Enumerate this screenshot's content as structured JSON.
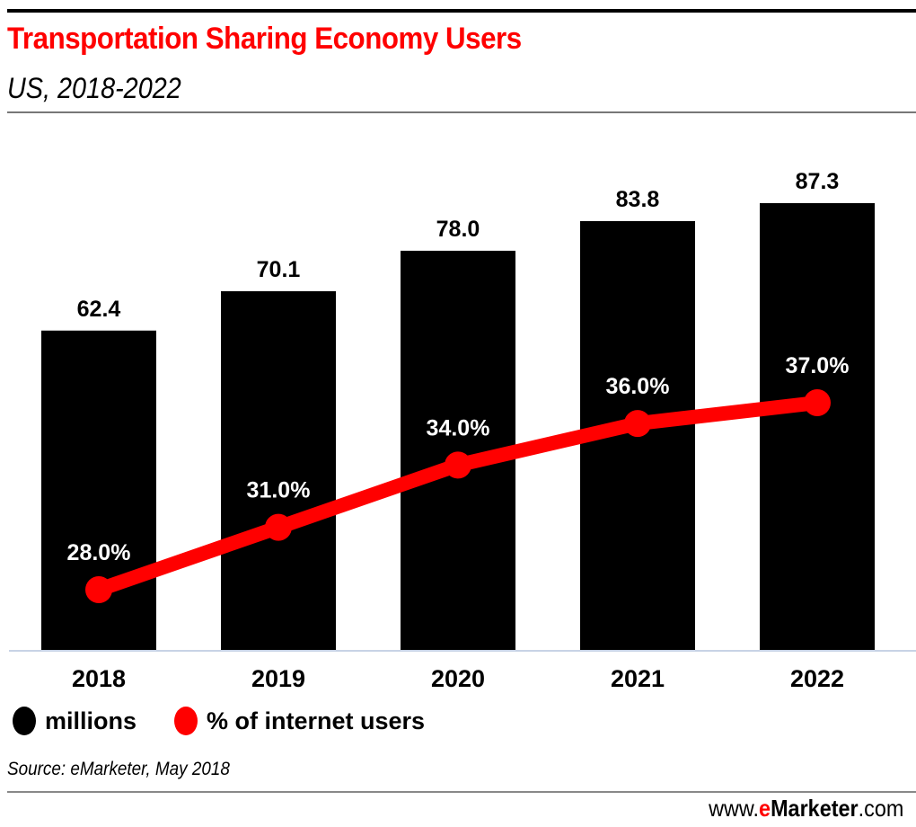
{
  "header": {
    "title": "Transportation Sharing Economy Users",
    "subtitle": "US, 2018-2022"
  },
  "chart_data": {
    "type": "bar",
    "title": "Transportation Sharing Economy Users",
    "subtitle": "US, 2018-2022",
    "xlabel": "",
    "ylabel": "",
    "categories": [
      "2018",
      "2019",
      "2020",
      "2021",
      "2022"
    ],
    "series": [
      {
        "name": "millions",
        "type": "bar",
        "color": "#000000",
        "values": [
          62.4,
          70.1,
          78.0,
          83.8,
          87.3
        ],
        "labels": [
          "62.4",
          "70.1",
          "78.0",
          "83.8",
          "87.3"
        ]
      },
      {
        "name": "% of internet users",
        "type": "line",
        "color": "#ff0000",
        "values": [
          28.0,
          31.0,
          34.0,
          36.0,
          37.0
        ],
        "labels": [
          "28.0%",
          "31.0%",
          "34.0%",
          "36.0%",
          "37.0%"
        ]
      }
    ],
    "ylim": [
      0,
      87.3
    ],
    "y2lim": [
      28.0,
      37.0
    ],
    "grid": false,
    "legend_position": "bottom-left"
  },
  "legend": [
    {
      "label": "millions",
      "color": "#000000"
    },
    {
      "label": "% of internet users",
      "color": "#ff0000"
    }
  ],
  "footer": {
    "source": "Source: eMarketer, May 2018",
    "brand_prefix": "www.",
    "brand_e": "e",
    "brand_name": "Marketer",
    "brand_suffix": ".com"
  }
}
